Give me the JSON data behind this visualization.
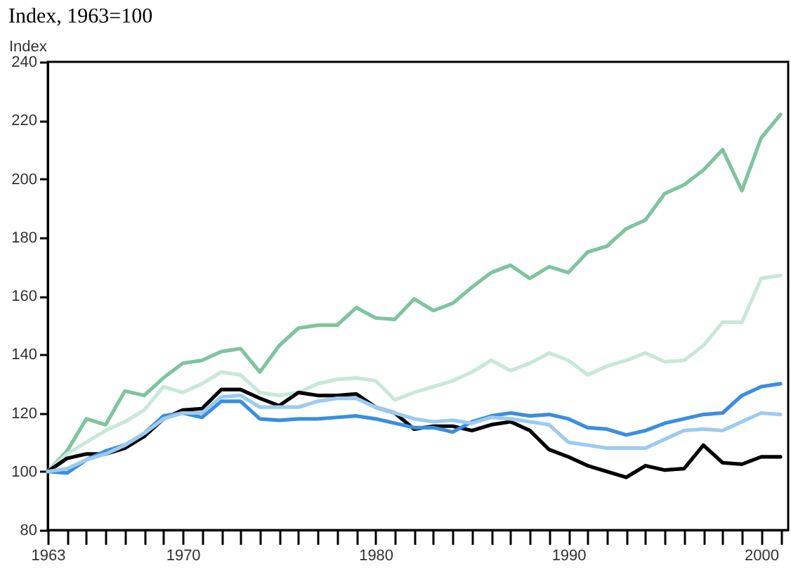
{
  "chart_data": {
    "type": "line",
    "title": "Index, 1963=100",
    "ylabel": "Index",
    "x": [
      1963,
      1964,
      1965,
      1966,
      1967,
      1968,
      1969,
      1970,
      1971,
      1972,
      1973,
      1974,
      1975,
      1976,
      1977,
      1978,
      1979,
      1980,
      1981,
      1982,
      1983,
      1984,
      1985,
      1986,
      1987,
      1988,
      1989,
      1990,
      1991,
      1992,
      1993,
      1994,
      1995,
      1996,
      1997,
      1998,
      1999,
      2000,
      2001
    ],
    "series": [
      {
        "color": "#7fc49f",
        "values": [
          100,
          107,
          118,
          116,
          127.5,
          126,
          132,
          137,
          138,
          141,
          142,
          134,
          143,
          149,
          150,
          150,
          156,
          152.5,
          152,
          159,
          155,
          157.5,
          163,
          168,
          170.5,
          166,
          170,
          168,
          175,
          177,
          183,
          186,
          195,
          198,
          203,
          210,
          196,
          214,
          222
        ]
      },
      {
        "color": "#c8e8d8",
        "values": [
          100,
          106,
          110,
          114,
          117,
          121,
          129,
          127,
          130,
          134,
          133,
          127,
          126,
          127,
          130,
          131.5,
          132,
          131,
          124.5,
          127,
          129,
          131,
          134,
          138,
          134.5,
          137,
          140.5,
          138,
          133,
          136,
          138,
          140.5,
          137.5,
          138,
          143,
          151,
          151,
          166,
          167
        ]
      },
      {
        "color": "#000000",
        "values": [
          100,
          104.5,
          106,
          106,
          108,
          112,
          118,
          121,
          121.5,
          128,
          128,
          125,
          122.5,
          127,
          126,
          126,
          126.5,
          122,
          120,
          114.5,
          115.5,
          115.5,
          114,
          116,
          117,
          114,
          107.5,
          105,
          102,
          100,
          98,
          102,
          100.5,
          101,
          109,
          103,
          102.5,
          105,
          105
        ]
      },
      {
        "color": "#3a8ee0",
        "values": [
          100,
          99.5,
          104,
          107,
          109,
          113,
          119,
          120,
          118.5,
          124,
          124,
          118,
          117.5,
          118,
          118,
          118.5,
          119,
          118,
          116.5,
          115,
          115,
          113.5,
          117,
          119,
          120,
          119,
          119.5,
          118,
          115,
          114.5,
          112.5,
          114,
          116.5,
          118,
          119.5,
          120,
          126,
          129,
          130
        ]
      },
      {
        "color": "#9ccbf0",
        "values": [
          100,
          101,
          104,
          106,
          109,
          113,
          118,
          120,
          120,
          125.5,
          126,
          122,
          122,
          122,
          124,
          125,
          125,
          122,
          120,
          118,
          117,
          117.5,
          116.5,
          118.5,
          118,
          117,
          116,
          110,
          109,
          108,
          108,
          108,
          111,
          114,
          114.5,
          114,
          117,
          120,
          119.5
        ]
      }
    ],
    "xlim": [
      1963,
      2001.4
    ],
    "xticks": [
      1963,
      {
        "value": 1964,
        "label": null
      },
      {
        "value": 1965,
        "label": null
      },
      {
        "value": 1966,
        "label": null
      },
      {
        "value": 1967,
        "label": null
      },
      {
        "value": 1968,
        "label": null
      },
      {
        "value": 1969,
        "label": null
      },
      1970,
      {
        "value": 1971,
        "label": null
      },
      {
        "value": 1972,
        "label": null
      },
      {
        "value": 1973,
        "label": null
      },
      {
        "value": 1974,
        "label": null
      },
      {
        "value": 1975,
        "label": null
      },
      {
        "value": 1976,
        "label": null
      },
      {
        "value": 1977,
        "label": null
      },
      {
        "value": 1978,
        "label": null
      },
      {
        "value": 1979,
        "label": null
      },
      1980,
      {
        "value": 1981,
        "label": null
      },
      {
        "value": 1982,
        "label": null
      },
      {
        "value": 1983,
        "label": null
      },
      {
        "value": 1984,
        "label": null
      },
      {
        "value": 1985,
        "label": null
      },
      {
        "value": 1986,
        "label": null
      },
      {
        "value": 1987,
        "label": null
      },
      {
        "value": 1988,
        "label": null
      },
      {
        "value": 1989,
        "label": null
      },
      1990,
      {
        "value": 1991,
        "label": null
      },
      {
        "value": 1992,
        "label": null
      },
      {
        "value": 1993,
        "label": null
      },
      {
        "value": 1994,
        "label": null
      },
      {
        "value": 1995,
        "label": null
      },
      {
        "value": 1996,
        "label": null
      },
      {
        "value": 1997,
        "label": null
      },
      {
        "value": 1998,
        "label": null
      },
      {
        "value": 1999,
        "label": null
      },
      2000,
      {
        "value": 2001,
        "label": null
      }
    ],
    "ylim": [
      80,
      240
    ],
    "yticks": [
      80,
      100,
      120,
      140,
      160,
      180,
      200,
      220,
      240
    ],
    "grid": false
  }
}
